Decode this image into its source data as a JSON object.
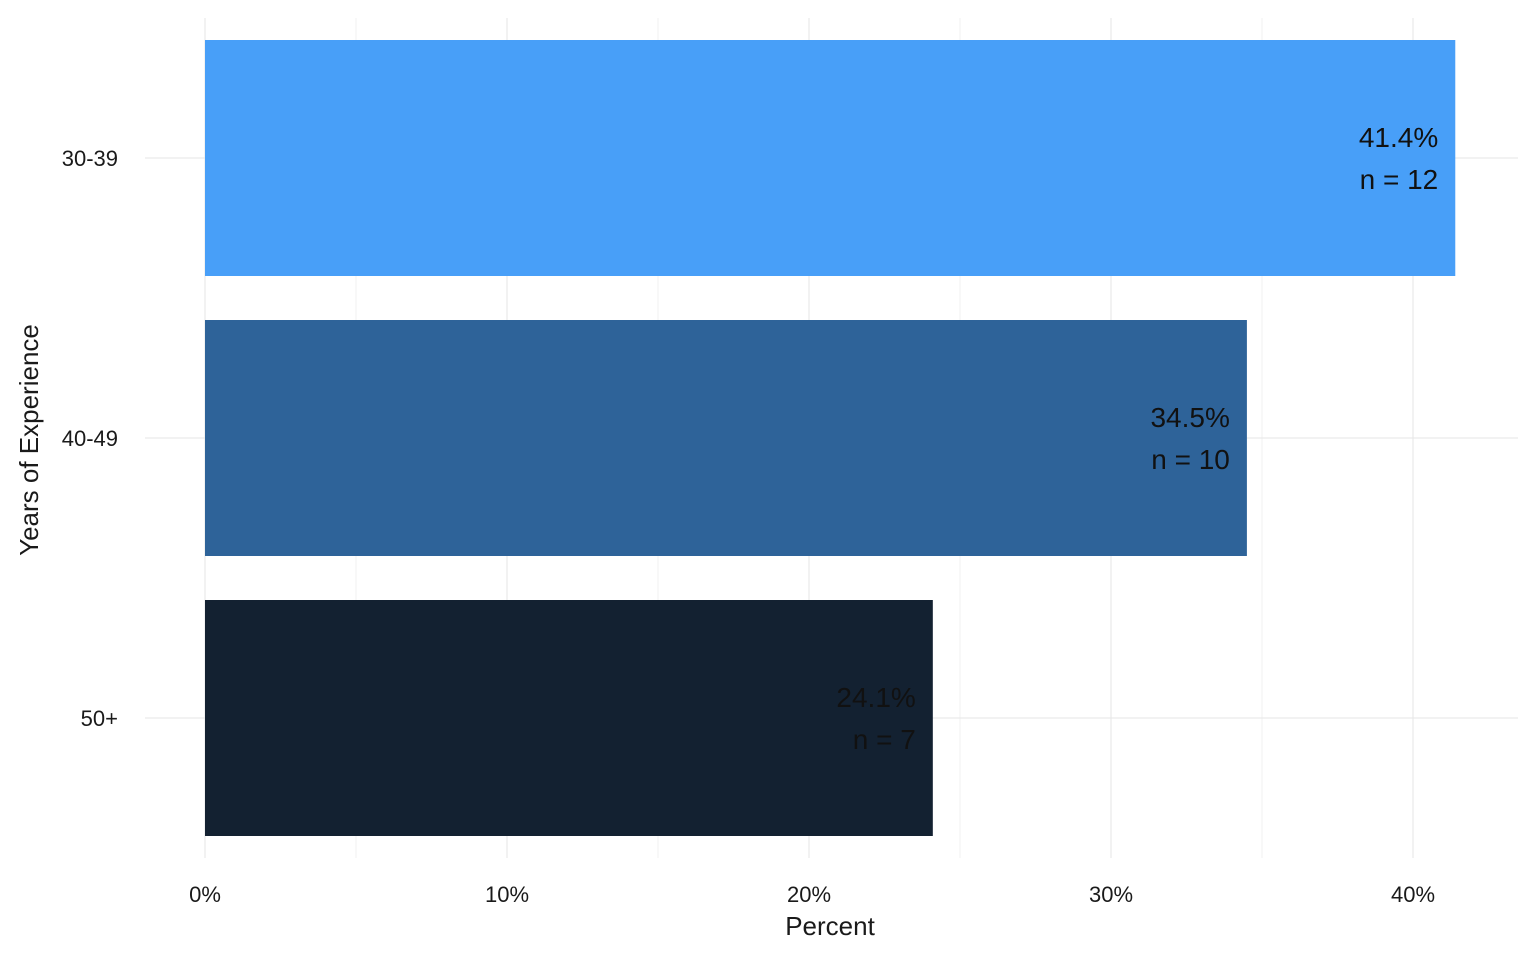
{
  "chart_data": {
    "type": "bar",
    "orientation": "horizontal",
    "title": "",
    "xlabel": "Percent",
    "ylabel": "Years of Experience",
    "categories": [
      "30-39",
      "40-49",
      "50+"
    ],
    "values": [
      41.4,
      34.5,
      24.1
    ],
    "counts": [
      12,
      10,
      7
    ],
    "value_labels": [
      "41.4%",
      "34.5%",
      "24.1%"
    ],
    "count_labels": [
      "n = 12",
      "n = 10",
      "n = 7"
    ],
    "colors": [
      "#489ff8",
      "#2e6399",
      "#132131"
    ],
    "xlim": [
      0,
      43.5
    ],
    "xticks": [
      0,
      10,
      20,
      30,
      40
    ],
    "xtick_labels": [
      "0%",
      "10%",
      "20%",
      "30%",
      "40%"
    ],
    "grid": true,
    "legend": "none"
  }
}
